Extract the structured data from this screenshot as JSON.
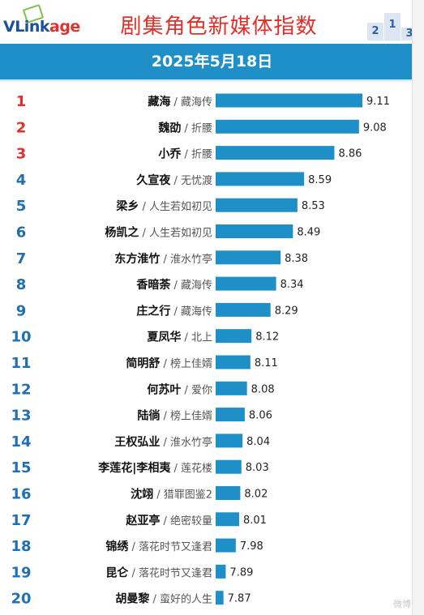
{
  "header": {
    "logo_prefix": "VLink",
    "logo_suffix": "age",
    "title": "剧集角色新媒体指数",
    "podium_labels": [
      "2",
      "1",
      "3"
    ]
  },
  "banner": {
    "date": "2025年5月18日"
  },
  "watermark": "微博",
  "colors": {
    "bar": "#1f8fc8",
    "rank_top": "#e0302a",
    "rank_other": "#1f6fb5",
    "title": "#e0302a"
  },
  "chart_data": {
    "type": "bar",
    "orientation": "horizontal",
    "title": "剧集角色新媒体指数",
    "subtitle": "2025年5月18日",
    "ranks": [
      1,
      2,
      3,
      4,
      5,
      6,
      7,
      8,
      9,
      10,
      11,
      12,
      13,
      14,
      15,
      16,
      17,
      18,
      19,
      20
    ],
    "categories": [
      {
        "role": "藏海",
        "drama": "藏海传"
      },
      {
        "role": "魏劭",
        "drama": "折腰"
      },
      {
        "role": "小乔",
        "drama": "折腰"
      },
      {
        "role": "久宣夜",
        "drama": "无忧渡"
      },
      {
        "role": "梁乡",
        "drama": "人生若如初见"
      },
      {
        "role": "杨凯之",
        "drama": "人生若如初见"
      },
      {
        "role": "东方淮竹",
        "drama": "淮水竹亭"
      },
      {
        "role": "香暗荼",
        "drama": "藏海传"
      },
      {
        "role": "庄之行",
        "drama": "藏海传"
      },
      {
        "role": "夏凤华",
        "drama": "北上"
      },
      {
        "role": "简明舒",
        "drama": "榜上佳婿"
      },
      {
        "role": "何苏叶",
        "drama": "爱你"
      },
      {
        "role": "陆徜",
        "drama": "榜上佳婿"
      },
      {
        "role": "王权弘业",
        "drama": "淮水竹亭"
      },
      {
        "role": "李莲花|李相夷",
        "drama": "莲花楼"
      },
      {
        "role": "沈翊",
        "drama": "猎罪图鉴2"
      },
      {
        "role": "赵亚亭",
        "drama": "绝密较量"
      },
      {
        "role": "锦绣",
        "drama": "落花时节又逢君"
      },
      {
        "role": "昆仑",
        "drama": "落花时节又逢君"
      },
      {
        "role": "胡曼黎",
        "drama": "蛮好的人生"
      }
    ],
    "values": [
      9.11,
      9.08,
      8.86,
      8.59,
      8.53,
      8.49,
      8.38,
      8.34,
      8.29,
      8.12,
      8.11,
      8.08,
      8.06,
      8.04,
      8.03,
      8.02,
      8.01,
      7.98,
      7.89,
      7.87
    ],
    "value_labels": [
      "9.11",
      "9.08",
      "8.86",
      "8.59",
      "8.53",
      "8.49",
      "8.38",
      "8.34",
      "8.29",
      "8.12",
      "8.11",
      "8.08",
      "8.06",
      "8.04",
      "8.03",
      "8.02",
      "8.01",
      "7.98",
      "7.89",
      "7.87"
    ],
    "label_separator": " / ",
    "xlim": [
      7.8,
      9.11
    ],
    "grid": false,
    "legend": "none"
  }
}
